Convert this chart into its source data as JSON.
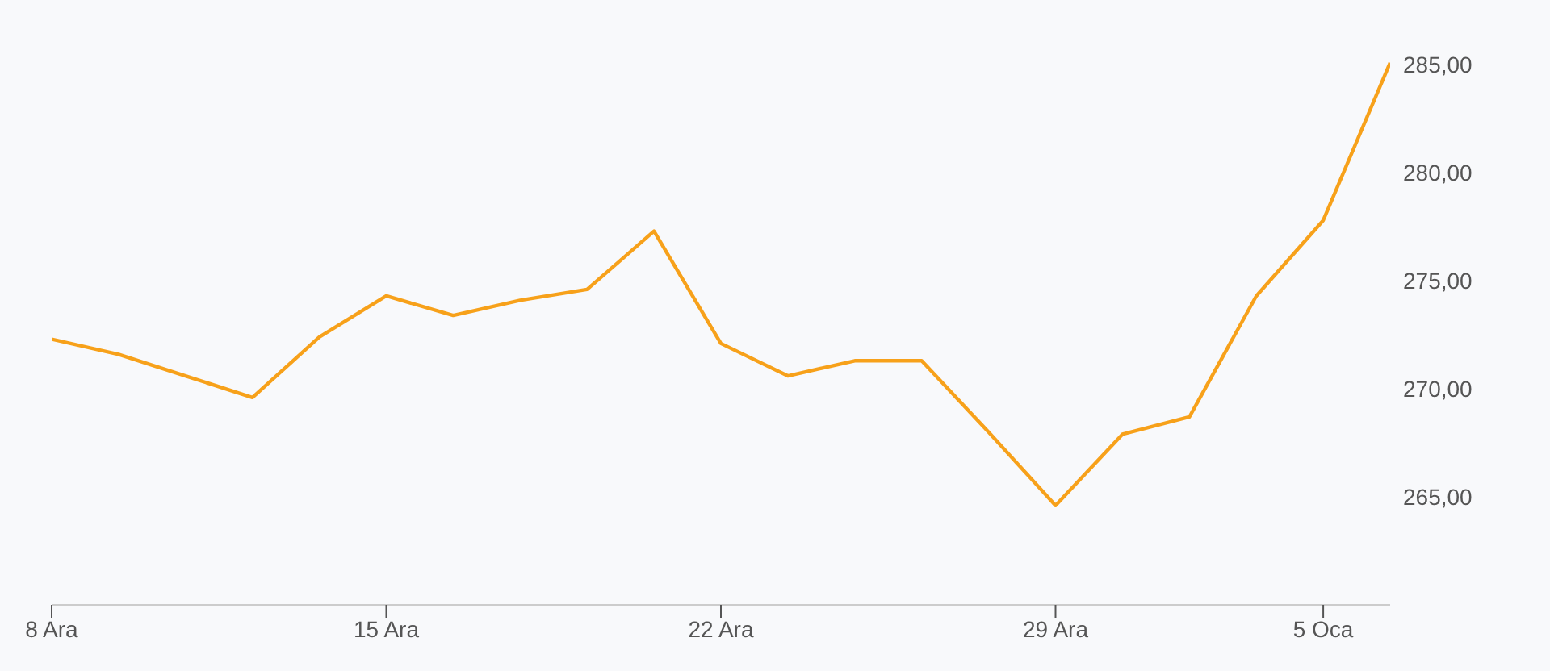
{
  "chart_data": {
    "type": "line",
    "categories": [
      "8 Ara",
      null,
      null,
      null,
      null,
      "15 Ara",
      null,
      null,
      null,
      null,
      "22 Ara",
      null,
      null,
      null,
      null,
      "29 Ara",
      null,
      null,
      null,
      "5 Oca",
      null
    ],
    "series": [
      {
        "color": "#f7a11a",
        "values": [
          272.3,
          271.6,
          270.6,
          269.6,
          272.4,
          274.3,
          273.4,
          274.1,
          274.6,
          277.3,
          272.1,
          270.6,
          271.3,
          271.3,
          268.0,
          264.6,
          267.9,
          268.7,
          274.3,
          277.8,
          285.1
        ]
      }
    ],
    "ylim": [
      260,
      288
    ],
    "yticks": [
      {
        "value": 265,
        "label": "265,00"
      },
      {
        "value": 270,
        "label": "270,00"
      },
      {
        "value": 275,
        "label": "275,00"
      },
      {
        "value": 280,
        "label": "280,00"
      },
      {
        "value": 285,
        "label": "285,00"
      }
    ],
    "grid": false,
    "legend": false,
    "marker": "none",
    "line_style": "solid"
  }
}
